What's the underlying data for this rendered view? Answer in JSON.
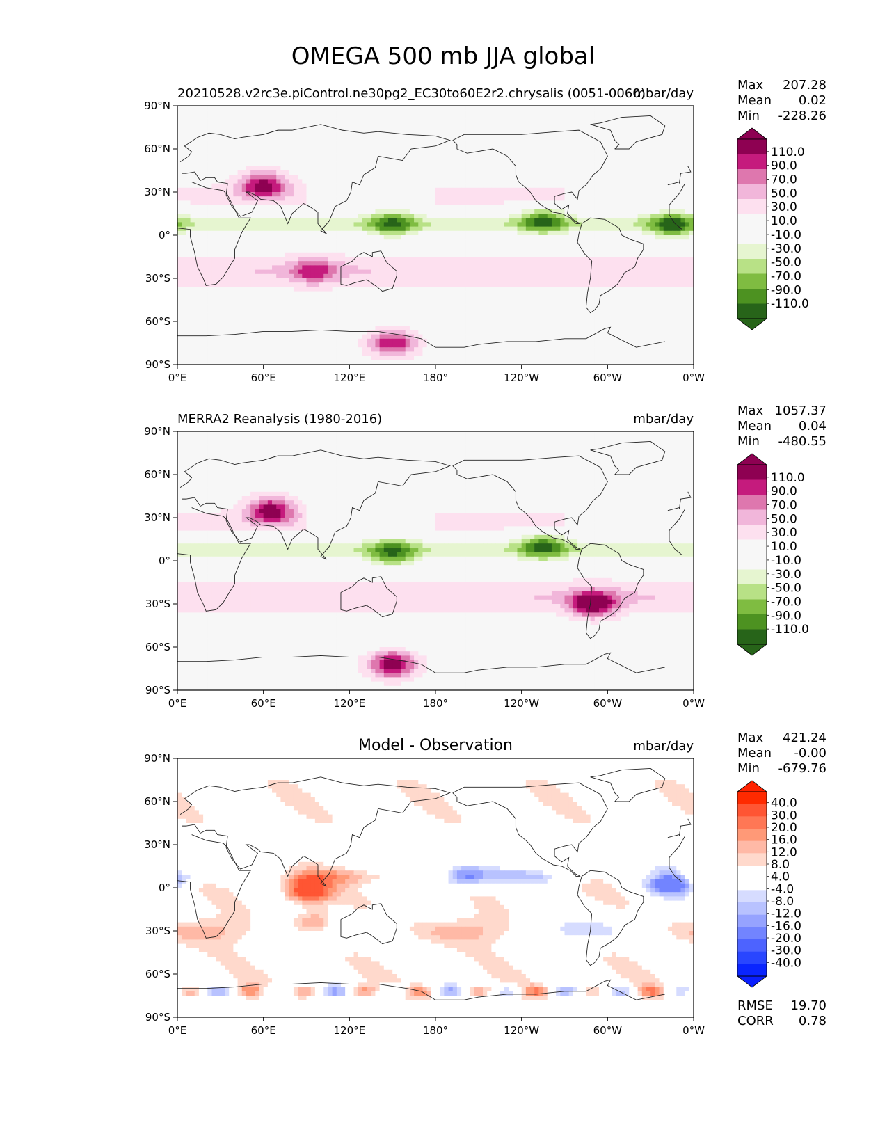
{
  "figure": {
    "title": "OMEGA 500 mb JJA global"
  },
  "chart_data": [
    {
      "type": "heatmap",
      "panel": "test",
      "title_left": "20210528.v2rc3e.piControl.ne30pg2_EC30to60E2r2.chrysalis (0051-0060)",
      "title_center": "",
      "units": "mbar/day",
      "projection": "lon-lat",
      "xlim": [
        0,
        360
      ],
      "ylim": [
        -90,
        90
      ],
      "x_ticks": [
        "0°E",
        "60°E",
        "120°E",
        "180°",
        "120°W",
        "60°W",
        "0°W"
      ],
      "y_ticks": [
        "90°N",
        "60°N",
        "30°N",
        "0°",
        "30°S",
        "60°S",
        "90°S"
      ],
      "stats": {
        "max_label": "Max",
        "max": "207.28",
        "mean_label": "Mean",
        "mean": "0.02",
        "min_label": "Min",
        "min": "-228.26"
      },
      "colorbar": {
        "extend": "both",
        "ticks": [
          "110.0",
          "90.0",
          "70.0",
          "50.0",
          "30.0",
          "10.0",
          "-10.0",
          "-30.0",
          "-50.0",
          "-70.0",
          "-90.0",
          "-110.0"
        ],
        "colors": [
          "#8e0152",
          "#c51b7d",
          "#de77ae",
          "#f1b6da",
          "#fde0ef",
          "#f7f7f7",
          "#f7f7f7",
          "#e6f5d0",
          "#b8e186",
          "#7fbc41",
          "#4d9221",
          "#276419"
        ],
        "under_color": "#276419",
        "over_color": "#8e0152"
      },
      "notable_features": [
        {
          "lon": 60,
          "lat": 35,
          "value": 100
        },
        {
          "lon": 95,
          "lat": -25,
          "value": 60
        },
        {
          "lon": 150,
          "lat": -75,
          "value": 90
        },
        {
          "lon": 150,
          "lat": 8,
          "value": -80
        },
        {
          "lon": 255,
          "lat": 10,
          "value": -80
        },
        {
          "lon": 345,
          "lat": 7,
          "value": -90
        }
      ]
    },
    {
      "type": "heatmap",
      "panel": "reference",
      "title_left": "MERRA2 Reanalysis (1980-2016)",
      "title_center": "",
      "units": "mbar/day",
      "projection": "lon-lat",
      "xlim": [
        0,
        360
      ],
      "ylim": [
        -90,
        90
      ],
      "x_ticks": [
        "0°E",
        "60°E",
        "120°E",
        "180°",
        "120°W",
        "60°W",
        "0°W"
      ],
      "y_ticks": [
        "90°N",
        "60°N",
        "30°N",
        "0°",
        "30°S",
        "60°S",
        "90°S"
      ],
      "stats": {
        "max_label": "Max",
        "max": "1057.37",
        "mean_label": "Mean",
        "mean": "0.04",
        "min_label": "Min",
        "min": "-480.55"
      },
      "colorbar": {
        "extend": "both",
        "ticks": [
          "110.0",
          "90.0",
          "70.0",
          "50.0",
          "30.0",
          "10.0",
          "-10.0",
          "-30.0",
          "-50.0",
          "-70.0",
          "-90.0",
          "-110.0"
        ],
        "colors": [
          "#8e0152",
          "#c51b7d",
          "#de77ae",
          "#f1b6da",
          "#fde0ef",
          "#f7f7f7",
          "#f7f7f7",
          "#e6f5d0",
          "#b8e186",
          "#7fbc41",
          "#4d9221",
          "#276419"
        ],
        "under_color": "#276419",
        "over_color": "#8e0152"
      },
      "notable_features": [
        {
          "lon": 65,
          "lat": 35,
          "value": 100
        },
        {
          "lon": 290,
          "lat": -30,
          "value": 110
        },
        {
          "lon": 150,
          "lat": -72,
          "value": 110
        },
        {
          "lon": 150,
          "lat": 5,
          "value": -80
        },
        {
          "lon": 255,
          "lat": 10,
          "value": -80
        }
      ]
    },
    {
      "type": "heatmap",
      "panel": "difference",
      "title_left": "",
      "title_center": "Model - Observation",
      "units": "mbar/day",
      "projection": "lon-lat",
      "xlim": [
        0,
        360
      ],
      "ylim": [
        -90,
        90
      ],
      "x_ticks": [
        "0°E",
        "60°E",
        "120°E",
        "180°",
        "120°W",
        "60°W",
        "0°W"
      ],
      "y_ticks": [
        "90°N",
        "60°N",
        "30°N",
        "0°",
        "30°S",
        "60°S",
        "90°S"
      ],
      "stats": {
        "max_label": "Max",
        "max": "421.24",
        "mean_label": "Mean",
        "mean": "-0.00",
        "min_label": "Min",
        "min": "-679.76"
      },
      "metrics": {
        "rmse_label": "RMSE",
        "rmse": "19.70",
        "corr_label": "CORR",
        "corr": "0.78"
      },
      "colorbar": {
        "extend": "both",
        "ticks": [
          "40.0",
          "30.0",
          "20.0",
          "16.0",
          "12.0",
          "8.0",
          "4.0",
          "-4.0",
          "-8.0",
          "-12.0",
          "-16.0",
          "-20.0",
          "-30.0",
          "-40.0"
        ],
        "colors": [
          "#ff2a00",
          "#ff5533",
          "#ff7755",
          "#ff9977",
          "#ffb9a6",
          "#ffd9cc",
          "#ffffff",
          "#ffffff",
          "#d6dcff",
          "#b8c2ff",
          "#96a3ff",
          "#7284ff",
          "#4d63ff",
          "#2946ff",
          "#0a25ff"
        ],
        "under_color": "#0a1fff",
        "over_color": "#ff2200"
      },
      "notable_features": [
        {
          "lon": 95,
          "lat": -25,
          "value": 20
        },
        {
          "lon": 345,
          "lat": 5,
          "value": -30
        },
        {
          "lon": 90,
          "lat": -2,
          "value": 30
        },
        {
          "lon": 200,
          "lat": 8,
          "value": -20
        }
      ]
    }
  ]
}
